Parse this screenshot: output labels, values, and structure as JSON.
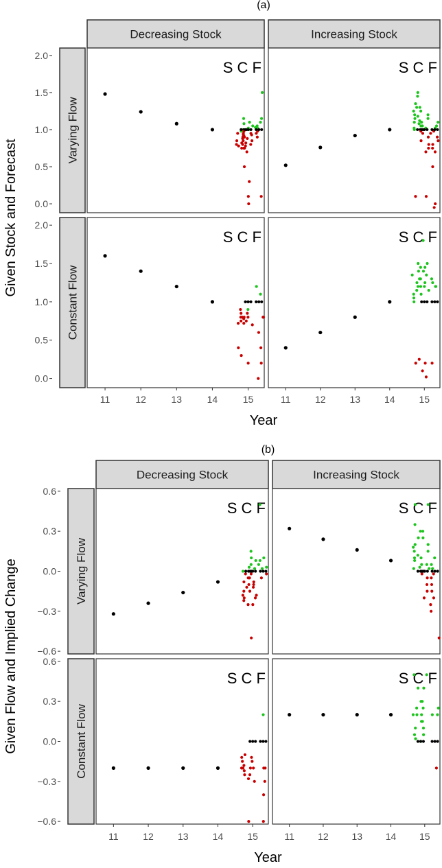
{
  "colors": {
    "given": "#000000",
    "higher": "#1ec41e",
    "lower": "#c80000",
    "strip_fill": "#d9d9d9",
    "panel_border": "#333333"
  },
  "chart_data": [
    {
      "id": "a",
      "type": "scatter",
      "title": "(a)",
      "ylabel": "Given Stock and Forecast",
      "xlabel": "Year",
      "col_strips": [
        "Decreasing Stock",
        "Increasing Stock"
      ],
      "row_strips": [
        "Varying Flow",
        "Constant Flow"
      ],
      "panel_annotation": "S C F",
      "x_ticks": [
        "11",
        "12",
        "13",
        "14",
        "15"
      ],
      "y_ticks": [
        "0.0",
        "0.5",
        "1.0",
        "1.5",
        "2.0"
      ],
      "xlim": [
        10.5,
        15.45
      ],
      "ylim": [
        -0.12,
        2.1
      ],
      "panels": [
        {
          "row": 0,
          "col": 0,
          "given": [
            [
              11,
              1.48
            ],
            [
              12,
              1.24
            ],
            [
              13,
              1.08
            ],
            [
              14,
              1.0
            ]
          ],
          "S": {
            "green": [
              1.0,
              0.98
            ],
            "red": [
              0.95,
              0.92,
              0.9,
              0.9,
              0.88,
              0.85,
              0.85,
              0.82,
              0.8,
              0.8,
              0.78,
              0.75,
              0.75,
              0.95,
              0.93,
              0.9
            ],
            "black": [
              1.0
            ]
          },
          "C": {
            "green": [
              1.15,
              1.1,
              1.08,
              1.05,
              1.02,
              1.0
            ],
            "red": [
              0.98,
              0.95,
              0.93,
              0.9,
              0.88,
              0.85,
              0.82,
              0.8,
              0.78,
              0.75,
              0.7,
              0.5,
              0.3,
              0.1,
              0.0
            ],
            "black": [
              1.0
            ]
          },
          "F": {
            "green": [
              1.5,
              1.15,
              1.1,
              1.05,
              1.03,
              1.02
            ],
            "red": [
              0.98,
              0.95,
              0.9,
              0.1
            ],
            "black": [
              1.0
            ]
          }
        },
        {
          "row": 0,
          "col": 1,
          "given": [
            [
              11,
              0.52
            ],
            [
              12,
              0.76
            ],
            [
              13,
              0.92
            ],
            [
              14,
              1.0
            ]
          ],
          "S": {
            "green": [
              1.5,
              1.45,
              1.35,
              1.3,
              1.25,
              1.2,
              1.18,
              1.15,
              1.12,
              1.1,
              1.08,
              1.05,
              1.02,
              1.0
            ],
            "red": [
              0.1
            ],
            "black": [
              1.0
            ]
          },
          "C": {
            "green": [
              1.3,
              1.25,
              1.2,
              1.15,
              1.1,
              1.05,
              1.02
            ],
            "red": [
              0.98,
              0.95,
              0.9,
              0.85,
              0.8,
              0.75,
              0.7,
              0.1
            ],
            "black": [
              1.0
            ]
          },
          "F": {
            "green": [
              1.1,
              1.05,
              1.02
            ],
            "red": [
              0.98,
              0.95,
              0.9,
              0.85,
              0.8,
              0.75,
              0.7,
              0.5,
              0.0,
              -0.05
            ],
            "black": [
              1.0
            ]
          }
        },
        {
          "row": 1,
          "col": 0,
          "given": [
            [
              11,
              1.6
            ],
            [
              12,
              1.4
            ],
            [
              13,
              1.2
            ],
            [
              14,
              1.0
            ]
          ],
          "S": {
            "green": [],
            "red": [
              0.9,
              0.85,
              0.8,
              0.8,
              0.78,
              0.75,
              0.72,
              0.4,
              0.3
            ],
            "black": []
          },
          "C": {
            "green": [
              0.9
            ],
            "red": [
              0.85,
              0.8,
              0.8,
              0.75,
              0.72,
              0.7,
              0.2
            ],
            "black": [
              1.0
            ]
          },
          "F": {
            "green": [
              1.2,
              1.1
            ],
            "red": [
              0.8,
              0.8,
              0.6,
              0.4,
              0.2,
              0.0
            ],
            "black": [
              1.0
            ]
          }
        },
        {
          "row": 1,
          "col": 1,
          "given": [
            [
              11,
              0.4
            ],
            [
              12,
              0.6
            ],
            [
              13,
              0.8
            ],
            [
              14,
              1.0
            ]
          ],
          "S": {
            "green": [
              1.5,
              1.45,
              1.4,
              1.35,
              1.3,
              1.25,
              1.2,
              1.2,
              1.15,
              1.1,
              1.05,
              1.0
            ],
            "red": [
              0.25,
              0.2
            ],
            "black": []
          },
          "C": {
            "green": [
              1.8,
              1.5,
              1.45,
              1.4,
              1.35,
              1.3,
              1.25,
              1.2,
              1.15,
              1.1
            ],
            "red": [
              0.2,
              0.1,
              0.02
            ],
            "black": [
              1.0
            ]
          },
          "F": {
            "green": [
              1.3,
              1.25,
              1.2,
              1.2
            ],
            "red": [
              0.2
            ],
            "black": [
              1.0
            ]
          }
        }
      ]
    },
    {
      "id": "b",
      "type": "scatter",
      "title": "(b)",
      "ylabel": "Given Flow and Implied Change",
      "xlabel": "Year",
      "col_strips": [
        "Decreasing Stock",
        "Increasing Stock"
      ],
      "row_strips": [
        "Varying Flow",
        "Constant Flow"
      ],
      "panel_annotation": "S C F",
      "x_ticks": [
        "11",
        "12",
        "13",
        "14",
        "15"
      ],
      "y_ticks": [
        "−0.6",
        "−0.3",
        "0.0",
        "0.3",
        "0.6"
      ],
      "xlim": [
        10.5,
        15.45
      ],
      "ylim": [
        -0.62,
        0.62
      ],
      "panels": [
        {
          "row": 0,
          "col": 0,
          "given": [
            [
              11,
              -0.32
            ],
            [
              12,
              -0.24
            ],
            [
              13,
              -0.16
            ],
            [
              14,
              -0.08
            ]
          ],
          "S": {
            "green": [
              0.0
            ],
            "red": [
              -0.02,
              -0.05,
              -0.08,
              -0.1,
              -0.12,
              -0.15,
              -0.18,
              -0.2,
              -0.22,
              -0.25
            ],
            "black": [
              0.0
            ]
          },
          "C": {
            "green": [
              0.15,
              0.1,
              0.08,
              0.05,
              0.03,
              0.02
            ],
            "red": [
              -0.02,
              -0.05,
              -0.08,
              -0.1,
              -0.12,
              -0.15,
              -0.18,
              -0.2,
              -0.25,
              -0.5
            ],
            "black": [
              0.0
            ]
          },
          "F": {
            "green": [
              0.5,
              0.1,
              0.08,
              0.05,
              0.03,
              0.02
            ],
            "red": [
              -0.02,
              -0.05
            ],
            "black": [
              0.0
            ]
          }
        },
        {
          "row": 0,
          "col": 1,
          "given": [
            [
              11,
              0.32
            ],
            [
              12,
              0.24
            ],
            [
              13,
              0.16
            ],
            [
              14,
              0.08
            ]
          ],
          "S": {
            "green": [
              0.5,
              0.35,
              0.3,
              0.25,
              0.2,
              0.18,
              0.15,
              0.12,
              0.1,
              0.08,
              0.05,
              0.03,
              0.02
            ],
            "red": [],
            "black": [
              0.0
            ]
          },
          "C": {
            "green": [
              0.5,
              0.3,
              0.25,
              0.2,
              0.15,
              0.1,
              0.05,
              0.02
            ],
            "red": [
              -0.02,
              -0.05,
              -0.1,
              -0.15,
              -0.2
            ],
            "black": [
              0.0
            ]
          },
          "F": {
            "green": [
              0.1,
              0.05,
              0.02
            ],
            "red": [
              -0.02,
              -0.05,
              -0.1,
              -0.15,
              -0.2,
              -0.25,
              -0.3,
              -0.5
            ],
            "black": [
              0.0
            ]
          }
        },
        {
          "row": 1,
          "col": 0,
          "given": [
            [
              11,
              -0.2
            ],
            [
              12,
              -0.2
            ],
            [
              13,
              -0.2
            ],
            [
              14,
              -0.2
            ]
          ],
          "S": {
            "green": [],
            "red": [
              -0.1,
              -0.12,
              -0.15,
              -0.18,
              -0.2,
              -0.2,
              -0.22,
              -0.25,
              -0.28,
              -0.6
            ],
            "black": []
          },
          "C": {
            "green": [],
            "red": [
              -0.12,
              -0.15,
              -0.2,
              -0.2,
              -0.25,
              -0.3
            ],
            "black": [
              0.0
            ]
          },
          "F": {
            "green": [
              0.2
            ],
            "red": [
              -0.2,
              -0.2,
              -0.3,
              -0.4,
              -0.6
            ],
            "black": [
              0.0
            ]
          }
        },
        {
          "row": 1,
          "col": 1,
          "given": [
            [
              11,
              0.2
            ],
            [
              12,
              0.2
            ],
            [
              13,
              0.2
            ],
            [
              14,
              0.2
            ]
          ],
          "S": {
            "green": [
              0.5,
              0.4,
              0.3,
              0.25,
              0.2,
              0.2,
              0.15,
              0.1,
              0.05,
              0.02,
              0.0
            ],
            "red": [],
            "black": [
              0.0
            ]
          },
          "C": {
            "green": [
              0.5,
              0.4,
              0.3,
              0.25,
              0.2,
              0.15,
              0.1,
              0.05
            ],
            "red": [],
            "black": []
          },
          "F": {
            "green": [
              0.25,
              0.2,
              0.2
            ],
            "red": [
              -0.2
            ],
            "black": [
              0.0
            ]
          }
        }
      ]
    }
  ]
}
